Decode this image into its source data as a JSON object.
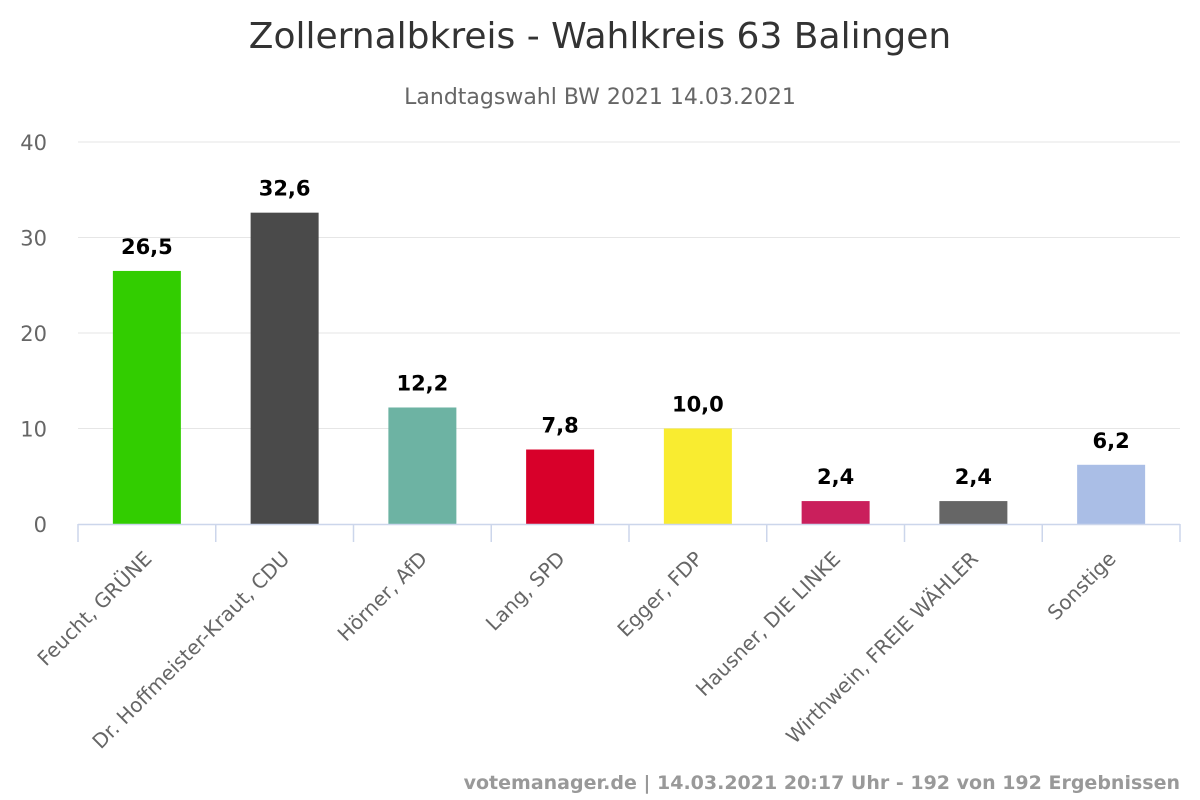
{
  "chart_data": {
    "type": "bar",
    "title": "Zollernalbkreis - Wahlkreis 63 Balingen",
    "subtitle": "Landtagswahl BW 2021 14.03.2021",
    "categories": [
      "Feucht, GRÜNE",
      "Dr. Hoffmeister-Kraut, CDU",
      "Hörner, AfD",
      "Lang, SPD",
      "Egger, FDP",
      "Hausner, DIE LINKE",
      "Wirthwein, FREIE WÄHLER",
      "Sonstige"
    ],
    "values": [
      26.5,
      32.6,
      12.2,
      7.8,
      10.0,
      2.4,
      2.4,
      6.2
    ],
    "data_labels": [
      "26,5",
      "32,6",
      "12,2",
      "7,8",
      "10,0",
      "2,4",
      "2,4",
      "6,2"
    ],
    "colors": [
      "#32cd00",
      "#4a4a4a",
      "#6db3a3",
      "#d8002a",
      "#f9ec30",
      "#ca1f5c",
      "#666666",
      "#aabee6"
    ],
    "ylim": [
      0,
      40
    ],
    "yticks": [
      "0",
      "10",
      "20",
      "30",
      "40"
    ],
    "grid": true,
    "credits": "votemanager.de | 14.03.2021 20:17 Uhr - 192 von 192 Ergebnissen"
  }
}
